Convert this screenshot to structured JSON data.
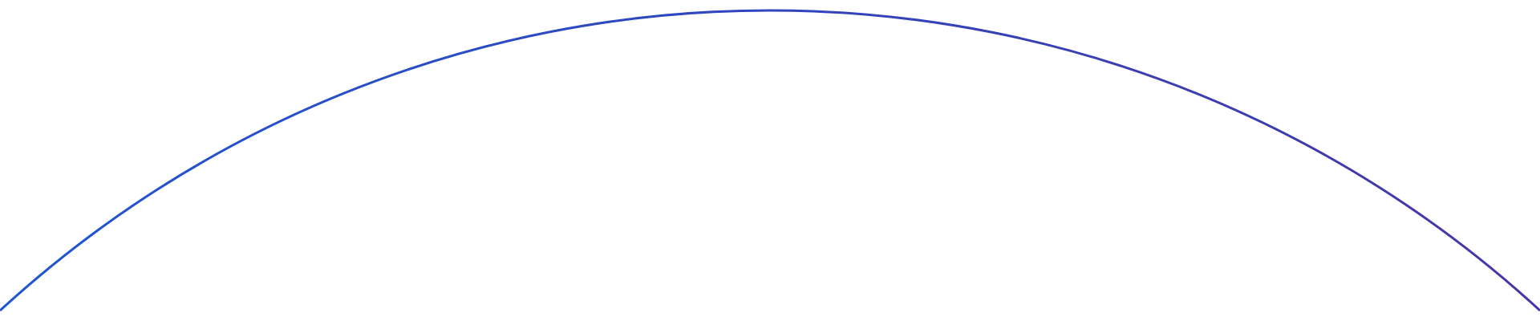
{
  "colors": {
    "arc_start": "#1f55d2",
    "arc_end": "#4436a8",
    "background": "#ffffff"
  }
}
